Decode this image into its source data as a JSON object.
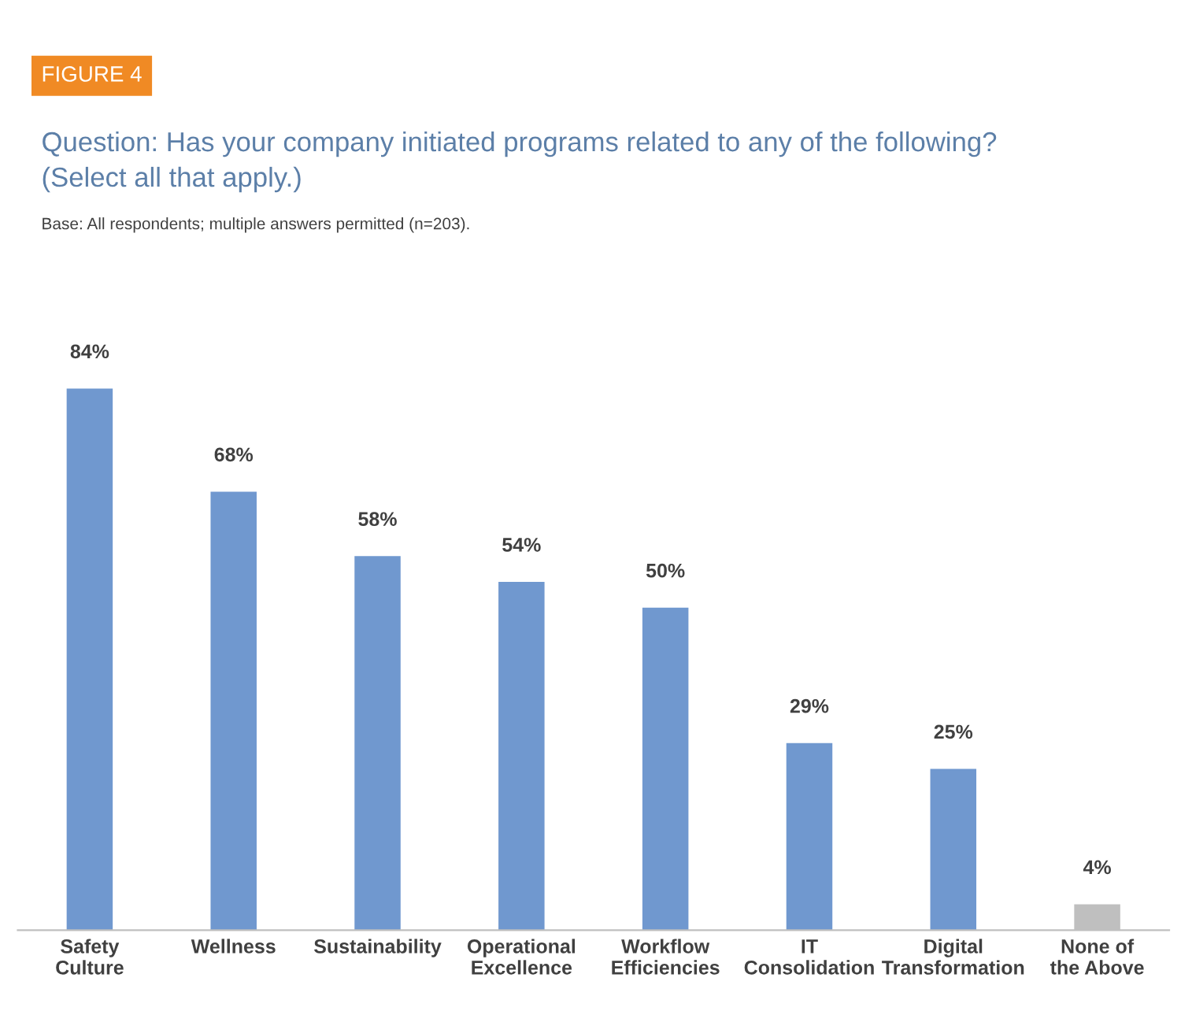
{
  "chart_data": {
    "type": "bar",
    "title": "Question: Has your company initiated programs related to any of the following?\n(Select all that apply.)",
    "subtitle": "Base: All respondents; multiple answers permitted (n=203).",
    "annotations": [
      "FIGURE 4"
    ],
    "categories": [
      "Safety\nCulture",
      "Wellness",
      "Sustainability",
      "Operational\nExcellence",
      "Workflow\nEfficiencies",
      "IT\nConsolidation",
      "Digital\nTransformation",
      "None of\nthe Above"
    ],
    "values": [
      84,
      68,
      58,
      54,
      50,
      29,
      25,
      4
    ],
    "colors": [
      "#7098cf",
      "#7098cf",
      "#7098cf",
      "#7098cf",
      "#7098cf",
      "#7098cf",
      "#7098cf",
      "#bfbfbf"
    ],
    "value_labels": [
      "84%",
      "68%",
      "58%",
      "54%",
      "50%",
      "29%",
      "25%",
      "4%"
    ],
    "grid": false,
    "legend": false
  }
}
